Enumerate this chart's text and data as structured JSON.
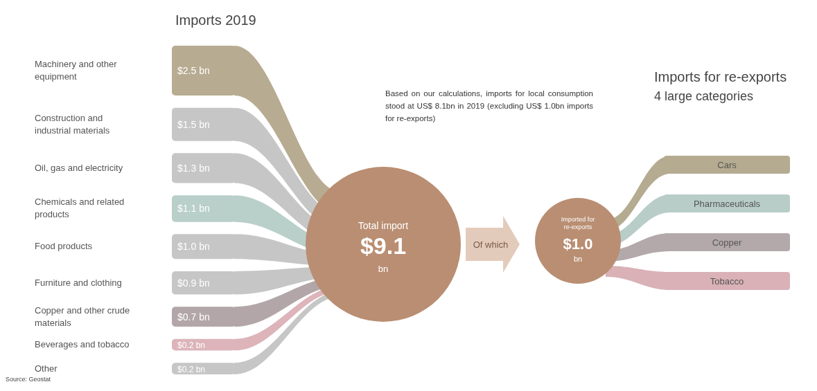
{
  "chart_data": [
    {
      "type": "other",
      "title": "Imports 2019",
      "categories": [
        "Machinery and other equipment",
        "Construction and industrial materials",
        "Oil, gas and electricity",
        "Chemicals and related products",
        "Food products",
        "Furniture and clothing",
        "Copper and other crude materials",
        "Beverages and tobacco",
        "Other"
      ],
      "values": [
        2.5,
        1.5,
        1.3,
        1.1,
        1.0,
        0.9,
        0.7,
        0.2,
        0.2
      ],
      "value_labels": [
        "$2.5 bn",
        "$1.5 bn",
        "$1.3 bn",
        "$1.1 bn",
        "$1.0 bn",
        "$0.9 bn",
        "$0.7 bn",
        "$0.2 bn",
        "$0.2 bn"
      ],
      "colors": [
        "#b7ab91",
        "#c6c6c6",
        "#c6c6c6",
        "#b9cfc9",
        "#c6c6c6",
        "#c6c6c6",
        "#b3a6a8",
        "#dcb4ba",
        "#c6c6c6"
      ],
      "annotations": [
        "Total import",
        "$9.1",
        "bn",
        "Of which",
        "Based on our calculations, imports for local consumption stood at US$ 8.1bn in 2019 (excluding US$ 1.0bn imports for re-exports)",
        "Source: Geostat"
      ]
    },
    {
      "type": "other",
      "title": "Imports for re-exports",
      "subtitle": "4 large categories",
      "categories": [
        "Cars",
        "Pharmaceuticals",
        "Copper",
        "Tobacco"
      ],
      "colors": [
        "#b5ab91",
        "#b8cdc8",
        "#b3a9ab",
        "#d9b1b7"
      ],
      "annotations": [
        "Imported for re-exports",
        "$1.0",
        "bn"
      ]
    }
  ]
}
